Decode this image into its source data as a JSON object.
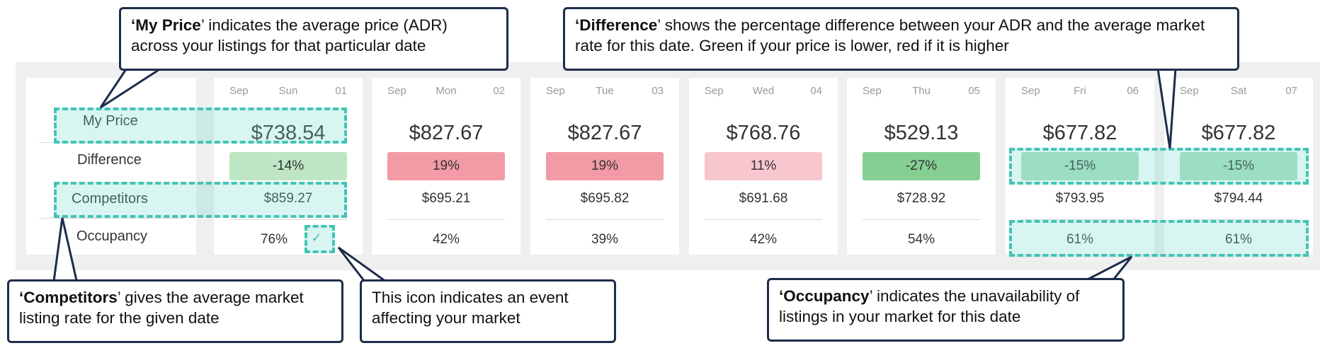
{
  "row_labels": {
    "my_price": "My Price",
    "difference": "Difference",
    "competitors": "Competitors",
    "occupancy": "Occupancy"
  },
  "days": [
    {
      "month": "Sep",
      "weekday": "Sun",
      "date": "01",
      "price": "$738.54",
      "difference": "-14%",
      "competitors": "$859.27",
      "occupancy": "76%",
      "event": true,
      "diff_color": "#bfe6c4"
    },
    {
      "month": "Sep",
      "weekday": "Mon",
      "date": "02",
      "price": "$827.67",
      "difference": "19%",
      "competitors": "$695.21",
      "occupancy": "42%",
      "event": false,
      "diff_color": "#f29aa6"
    },
    {
      "month": "Sep",
      "weekday": "Tue",
      "date": "03",
      "price": "$827.67",
      "difference": "19%",
      "competitors": "$695.82",
      "occupancy": "39%",
      "event": false,
      "diff_color": "#f29aa6"
    },
    {
      "month": "Sep",
      "weekday": "Wed",
      "date": "04",
      "price": "$768.76",
      "difference": "11%",
      "competitors": "$691.68",
      "occupancy": "42%",
      "event": false,
      "diff_color": "#f8c6ce"
    },
    {
      "month": "Sep",
      "weekday": "Thu",
      "date": "05",
      "price": "$529.13",
      "difference": "-27%",
      "competitors": "$728.92",
      "occupancy": "54%",
      "event": false,
      "diff_color": "#85cf93"
    },
    {
      "month": "Sep",
      "weekday": "Fri",
      "date": "06",
      "price": "$677.82",
      "difference": "-15%",
      "competitors": "$793.95",
      "occupancy": "61%",
      "event": false,
      "diff_color": "#a9e0be"
    },
    {
      "month": "Sep",
      "weekday": "Sat",
      "date": "07",
      "price": "$677.82",
      "difference": "-15%",
      "competitors": "$794.44",
      "occupancy": "61%",
      "event": false,
      "diff_color": "#a9e0be"
    }
  ],
  "callouts": {
    "my_price": {
      "bold": "‘My Price",
      "rest": "’ indicates the average price (ADR) across your listings for that particular date"
    },
    "difference": {
      "bold": "‘Difference",
      "rest": "’ shows the percentage difference between your ADR and the average market rate for this date. Green if your price is lower, red if it is higher"
    },
    "competitors": {
      "bold": "‘Competitors",
      "rest": "’ gives the average market listing rate for the given date"
    },
    "event": {
      "text": "This icon indicates an event affecting your market"
    },
    "occupancy": {
      "bold": "‘Occupancy",
      "rest": "’ indicates the unavailability of listings in your market for this date"
    }
  },
  "icons": {
    "event": "check-icon"
  },
  "colors": {
    "highlight_border": "#42c4b6",
    "callout_border": "#1c2c4a"
  }
}
